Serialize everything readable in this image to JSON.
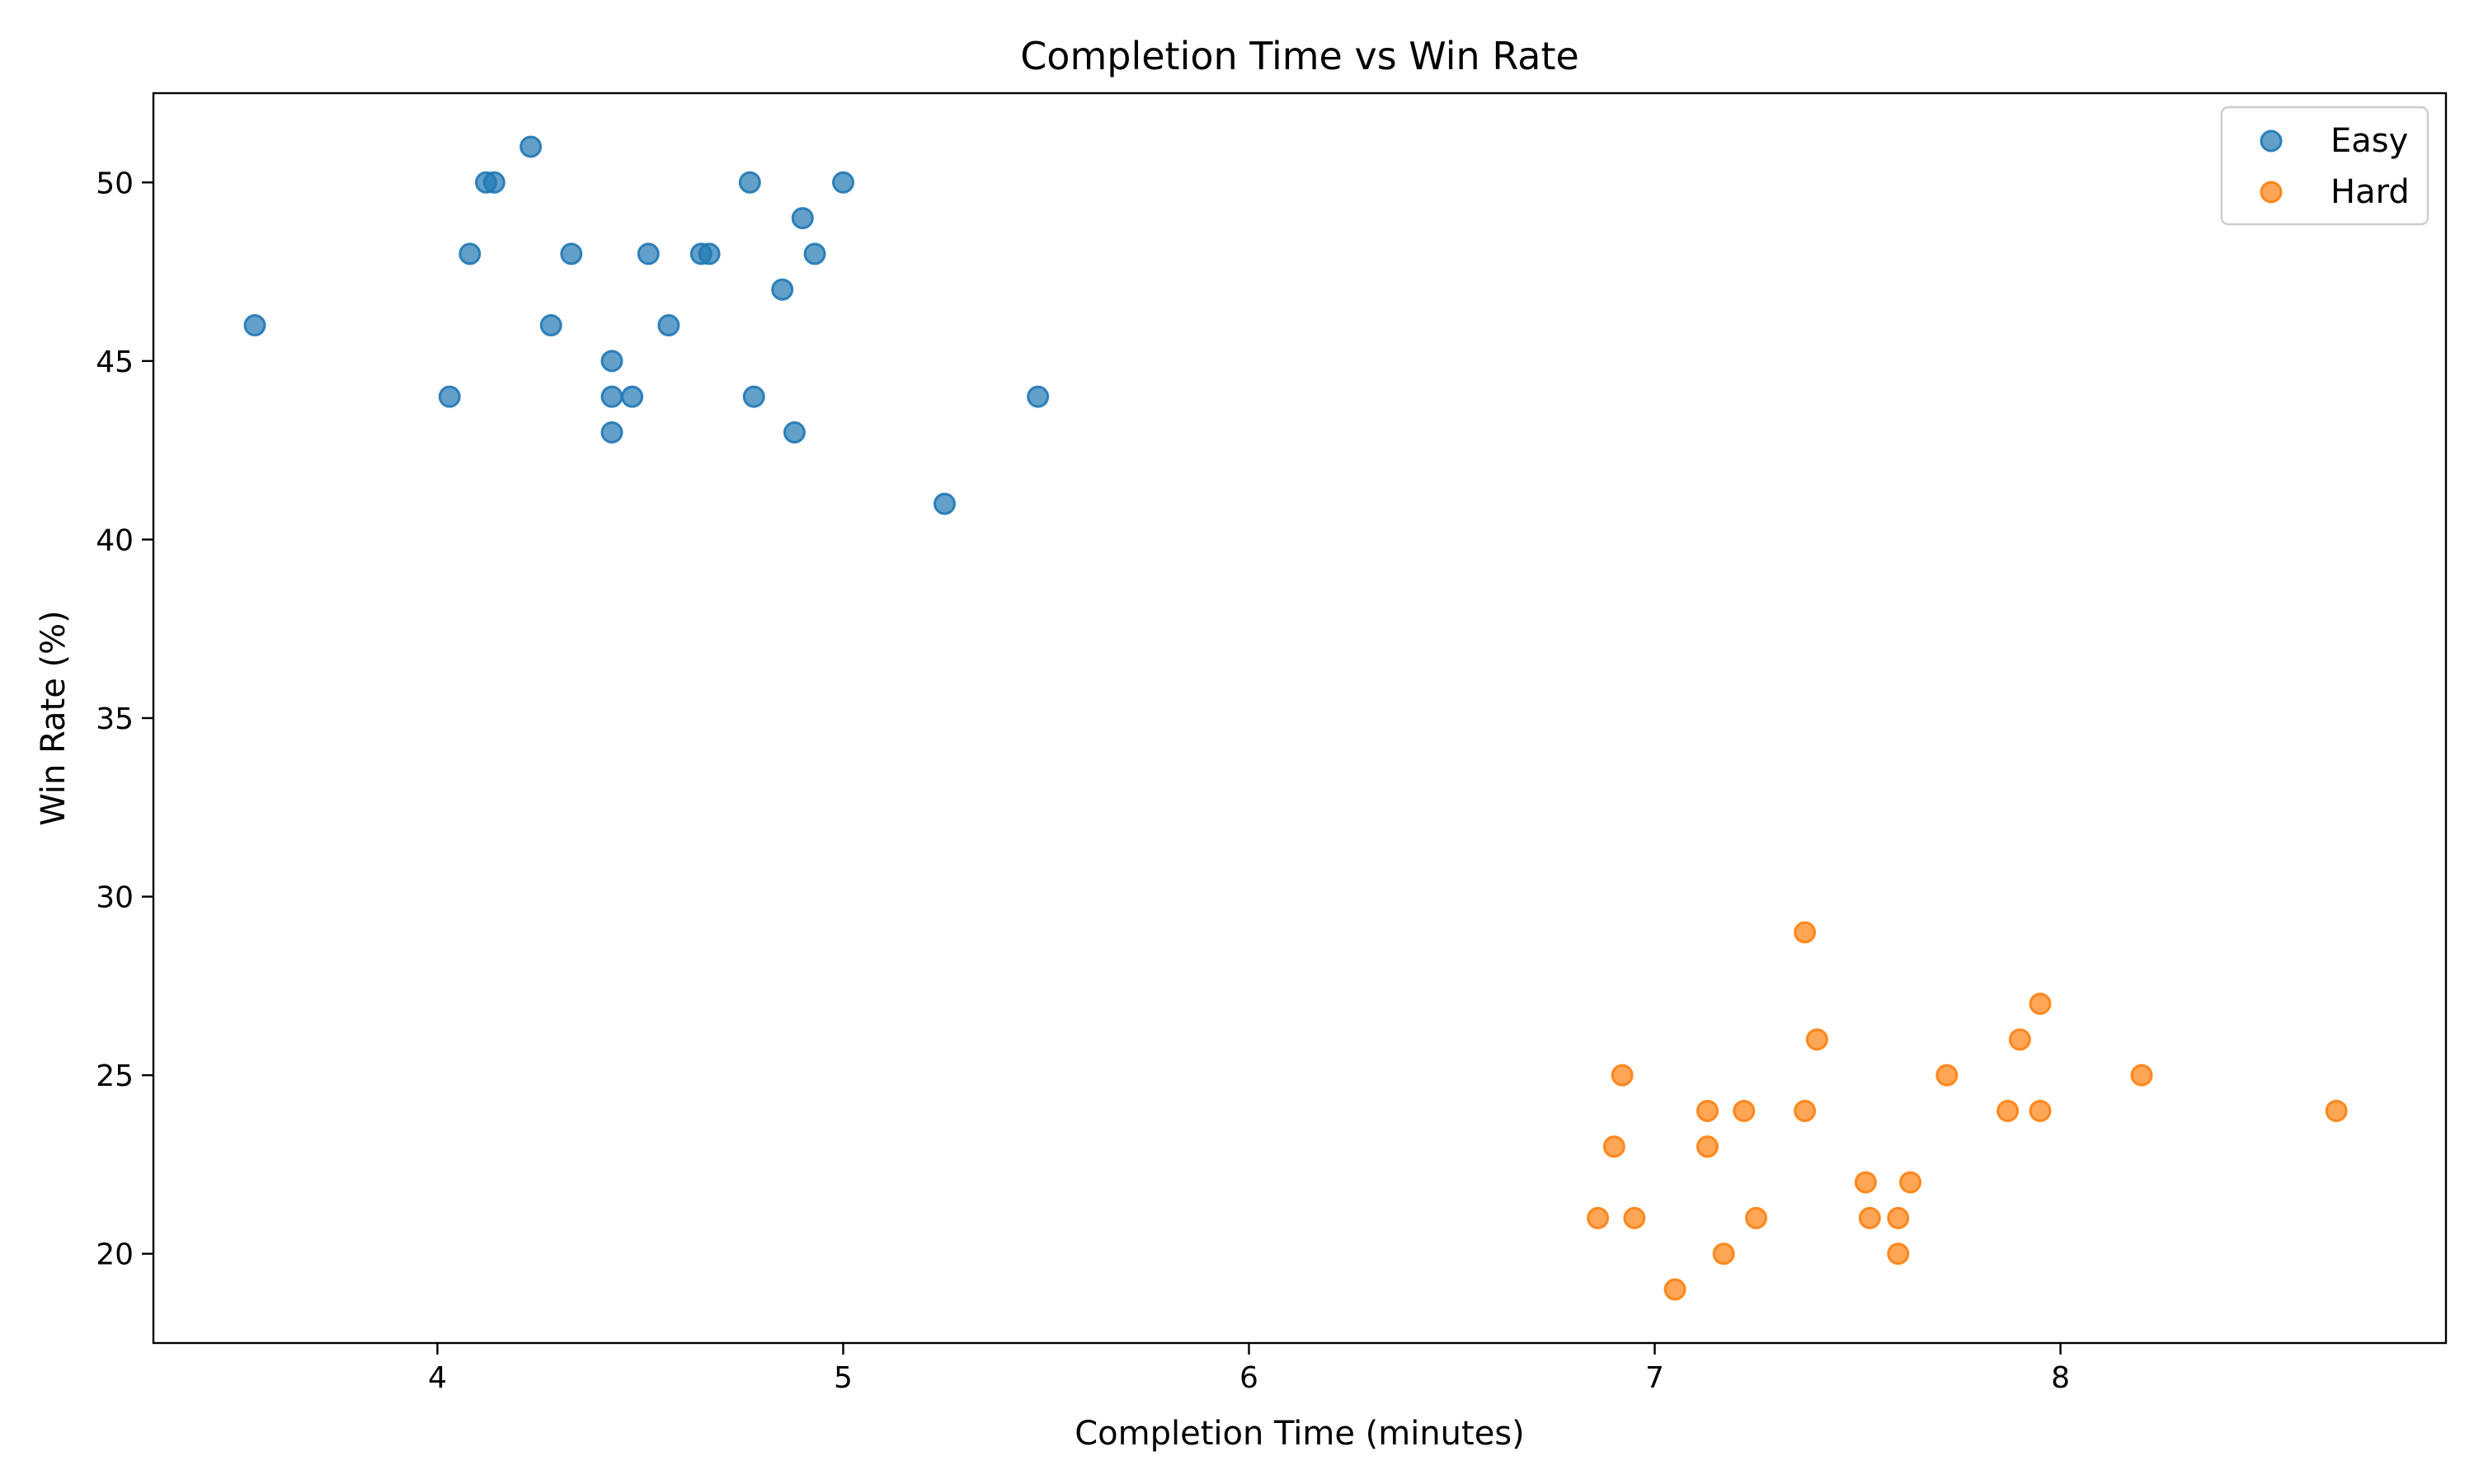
{
  "chart_data": {
    "type": "scatter",
    "title": "Completion Time vs Win Rate",
    "xlabel": "Completion Time (minutes)",
    "ylabel": "Win Rate (%)",
    "xlim": [
      3.3,
      8.95
    ],
    "ylim": [
      17.5,
      52.5
    ],
    "xticks": [
      4,
      5,
      6,
      7,
      8
    ],
    "yticks": [
      20,
      25,
      30,
      35,
      40,
      45,
      50
    ],
    "grid": false,
    "legend_position": "top-right",
    "series": [
      {
        "name": "Easy",
        "color": "#1f77b4",
        "points": [
          [
            3.55,
            46
          ],
          [
            4.03,
            44
          ],
          [
            4.08,
            48
          ],
          [
            4.12,
            50
          ],
          [
            4.14,
            50
          ],
          [
            4.23,
            51
          ],
          [
            4.28,
            46
          ],
          [
            4.33,
            48
          ],
          [
            4.43,
            45
          ],
          [
            4.43,
            44
          ],
          [
            4.43,
            43
          ],
          [
            4.48,
            44
          ],
          [
            4.52,
            48
          ],
          [
            4.57,
            46
          ],
          [
            4.65,
            48
          ],
          [
            4.67,
            48
          ],
          [
            4.77,
            50
          ],
          [
            4.78,
            44
          ],
          [
            4.85,
            47
          ],
          [
            4.88,
            43
          ],
          [
            4.9,
            49
          ],
          [
            4.93,
            48
          ],
          [
            5.0,
            50
          ],
          [
            5.25,
            41
          ],
          [
            5.48,
            44
          ]
        ]
      },
      {
        "name": "Hard",
        "color": "#ff7f0e",
        "points": [
          [
            6.86,
            21
          ],
          [
            6.9,
            23
          ],
          [
            6.92,
            25
          ],
          [
            6.95,
            21
          ],
          [
            7.05,
            19
          ],
          [
            7.13,
            24
          ],
          [
            7.13,
            23
          ],
          [
            7.17,
            20
          ],
          [
            7.22,
            24
          ],
          [
            7.25,
            21
          ],
          [
            7.37,
            29
          ],
          [
            7.37,
            24
          ],
          [
            7.4,
            26
          ],
          [
            7.52,
            22
          ],
          [
            7.53,
            21
          ],
          [
            7.6,
            21
          ],
          [
            7.6,
            20
          ],
          [
            7.63,
            22
          ],
          [
            7.72,
            25
          ],
          [
            7.87,
            24
          ],
          [
            7.9,
            26
          ],
          [
            7.95,
            27
          ],
          [
            7.95,
            24
          ],
          [
            8.2,
            25
          ],
          [
            8.68,
            24
          ]
        ]
      }
    ]
  }
}
